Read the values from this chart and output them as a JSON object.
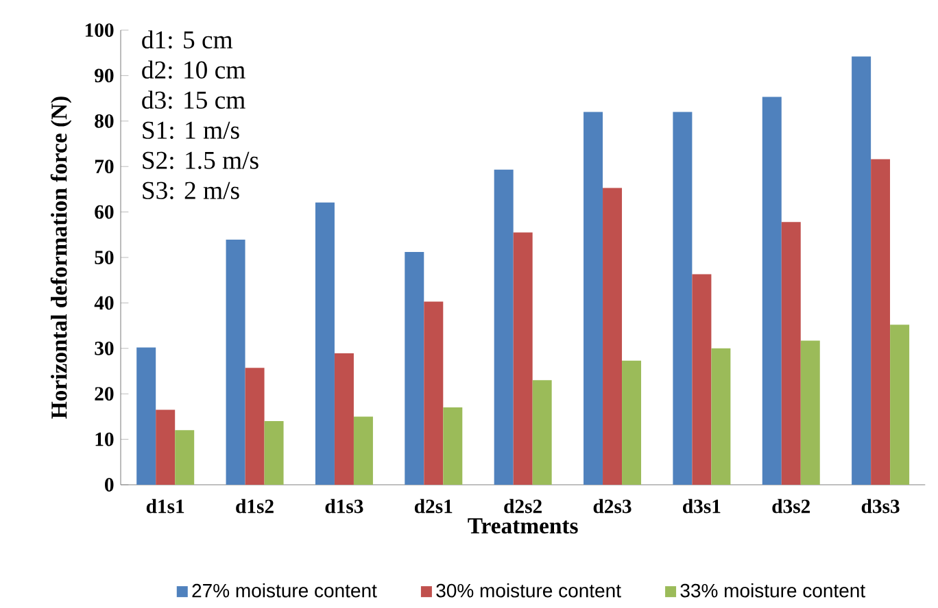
{
  "chart_data": {
    "type": "bar",
    "xlabel": "Treatments",
    "ylabel": "Horizontal deformation force (N)",
    "categories": [
      "d1s1",
      "d1s2",
      "d1s3",
      "d2s1",
      "d2s2",
      "d2s3",
      "d3s1",
      "d3s2",
      "d3s3"
    ],
    "series": [
      {
        "name": "27% moisture content",
        "color": "#4f81bd",
        "values": [
          30.2,
          53.9,
          62.1,
          51.2,
          69.3,
          82.0,
          82.0,
          85.3,
          94.2
        ]
      },
      {
        "name": "30% moisture content",
        "color": "#c0504d",
        "values": [
          16.5,
          25.7,
          28.9,
          40.3,
          55.5,
          65.3,
          46.3,
          57.8,
          71.6
        ]
      },
      {
        "name": "33% moisture content",
        "color": "#9bbb59",
        "values": [
          12.0,
          14.0,
          15.0,
          17.0,
          23.0,
          27.3,
          30.0,
          31.7,
          35.2
        ]
      }
    ],
    "ylim": [
      0,
      100
    ],
    "yticks": [
      0,
      10,
      20,
      30,
      40,
      50,
      60,
      70,
      80,
      90,
      100
    ],
    "grid": false,
    "legend": "bottom",
    "annotations": [
      "d1:   5 cm",
      "d2:   10 cm",
      "d3:   15 cm",
      "S1:   1 m/s",
      "S2:   1.5 m/s",
      "S3:   2 m/s"
    ]
  }
}
